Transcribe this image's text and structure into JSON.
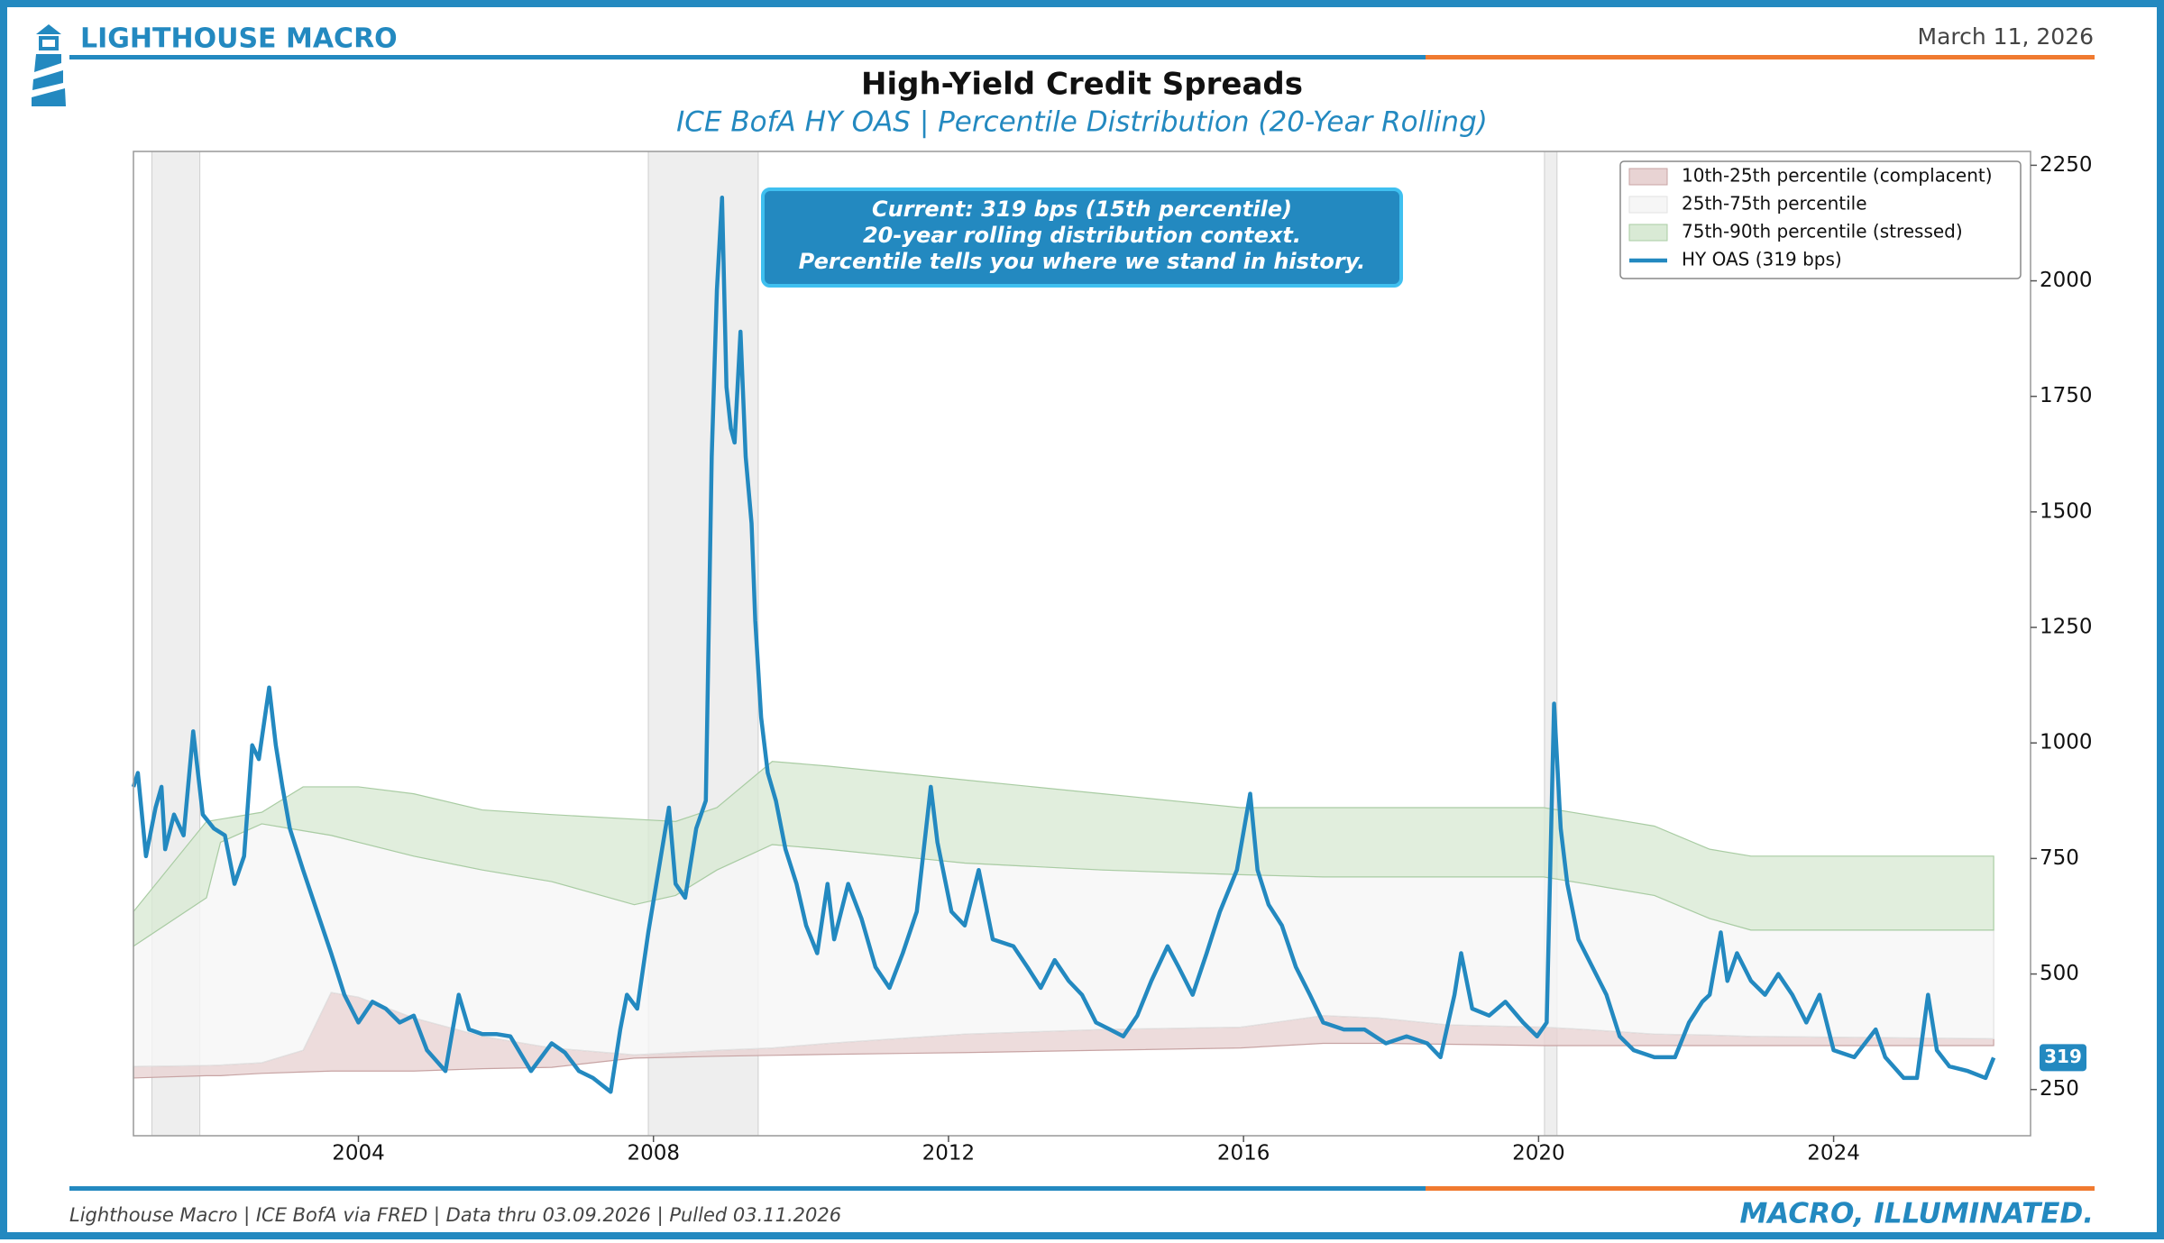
{
  "header": {
    "brand": "LIGHTHOUSE MACRO",
    "date": "March 11, 2026"
  },
  "footer": {
    "source": "Lighthouse Macro | ICE BofA via FRED | Data thru 03.09.2026 | Pulled 03.11.2026",
    "tagline": "MACRO, ILLUMINATED."
  },
  "chart_data": {
    "type": "line",
    "title": "High-Yield Credit Spreads",
    "subtitle": "ICE BofA HY OAS | Percentile Distribution (20-Year Rolling)",
    "annotation": [
      "Current: 319 bps (15th percentile)",
      "20-year rolling distribution context.",
      "Percentile tells you where we stand in history."
    ],
    "xlim": [
      2000.95,
      2026.67
    ],
    "xticks": [
      2004,
      2008,
      2012,
      2016,
      2020,
      2024
    ],
    "ylim": [
      150,
      2280
    ],
    "yticks": [
      250,
      500,
      750,
      1000,
      1250,
      1500,
      1750,
      2000,
      2250
    ],
    "legend": "upper right",
    "shaded_periods": [
      [
        2001.2,
        2001.85
      ],
      [
        2007.93,
        2009.42
      ],
      [
        2020.08,
        2020.25
      ]
    ],
    "band_x": [
      2000.95,
      2001.94,
      2002.13,
      2002.69,
      2003.25,
      2003.63,
      2004.0,
      2004.75,
      2005.68,
      2006.62,
      2007.74,
      2008.3,
      2008.86,
      2009.61,
      2010.36,
      2012.22,
      2014.09,
      2015.96,
      2017.08,
      2017.83,
      2018.77,
      2020.07,
      2020.64,
      2021.57,
      2022.32,
      2022.88,
      2026.17
    ],
    "bands": [
      {
        "name": "10th-25th percentile (complacent)",
        "color": "#e8d3d3",
        "edge": "#c7a3a3",
        "lower": [
          275,
          280,
          280,
          285,
          288,
          290,
          290,
          290,
          295,
          298,
          318,
          320,
          322,
          324,
          326,
          330,
          335,
          340,
          350,
          350,
          348,
          345,
          345,
          345,
          345,
          345,
          345
        ],
        "upper": [
          300,
          302,
          303,
          308,
          335,
          460,
          450,
          405,
          365,
          340,
          325,
          330,
          335,
          340,
          350,
          370,
          380,
          385,
          410,
          405,
          390,
          385,
          380,
          370,
          368,
          365,
          360
        ]
      },
      {
        "name": "25th-75th percentile",
        "color": "#f6f6f6",
        "edge": "#e2e2e2",
        "lower": [
          300,
          302,
          303,
          308,
          335,
          460,
          450,
          405,
          365,
          340,
          325,
          330,
          335,
          340,
          350,
          370,
          380,
          385,
          410,
          405,
          390,
          385,
          380,
          370,
          368,
          365,
          360
        ],
        "upper": [
          560,
          665,
          785,
          825,
          810,
          800,
          785,
          755,
          725,
          700,
          650,
          670,
          725,
          780,
          770,
          740,
          725,
          715,
          710,
          710,
          710,
          710,
          695,
          670,
          620,
          595,
          595
        ]
      },
      {
        "name": "75th-90th percentile (stressed)",
        "color": "#d9ead5",
        "edge": "#a9cca3",
        "lower": [
          560,
          665,
          785,
          825,
          810,
          800,
          785,
          755,
          725,
          700,
          650,
          670,
          725,
          780,
          770,
          740,
          725,
          715,
          710,
          710,
          710,
          710,
          695,
          670,
          620,
          595,
          595
        ],
        "upper": [
          635,
          830,
          835,
          850,
          905,
          905,
          905,
          890,
          855,
          845,
          835,
          830,
          860,
          960,
          950,
          920,
          890,
          860,
          860,
          860,
          860,
          860,
          845,
          820,
          770,
          755,
          755
        ]
      }
    ],
    "x": [
      2000.95,
      2001.01,
      2001.12,
      2001.25,
      2001.33,
      2001.38,
      2001.5,
      2001.63,
      2001.76,
      2001.89,
      2002.04,
      2002.19,
      2002.32,
      2002.45,
      2002.56,
      2002.65,
      2002.79,
      2002.88,
      2002.97,
      2003.07,
      2003.25,
      2003.44,
      2003.63,
      2003.81,
      2004.0,
      2004.19,
      2004.37,
      2004.56,
      2004.75,
      2004.93,
      2005.18,
      2005.36,
      2005.5,
      2005.68,
      2005.87,
      2006.06,
      2006.34,
      2006.62,
      2006.8,
      2006.99,
      2007.18,
      2007.42,
      2007.55,
      2007.64,
      2007.78,
      2007.93,
      2008.07,
      2008.21,
      2008.3,
      2008.43,
      2008.58,
      2008.71,
      2008.79,
      2008.86,
      2008.93,
      2008.99,
      2009.05,
      2009.1,
      2009.18,
      2009.25,
      2009.33,
      2009.38,
      2009.46,
      2009.55,
      2009.66,
      2009.79,
      2009.94,
      2010.07,
      2010.22,
      2010.36,
      2010.45,
      2010.64,
      2010.82,
      2011.01,
      2011.2,
      2011.38,
      2011.57,
      2011.76,
      2011.85,
      2012.04,
      2012.22,
      2012.41,
      2012.6,
      2012.88,
      2013.07,
      2013.25,
      2013.44,
      2013.63,
      2013.81,
      2014.0,
      2014.19,
      2014.37,
      2014.56,
      2014.75,
      2014.97,
      2015.12,
      2015.31,
      2015.5,
      2015.68,
      2015.91,
      2016.09,
      2016.19,
      2016.34,
      2016.52,
      2016.71,
      2016.9,
      2017.08,
      2017.36,
      2017.64,
      2017.93,
      2018.21,
      2018.49,
      2018.67,
      2018.86,
      2018.95,
      2019.1,
      2019.33,
      2019.55,
      2019.79,
      2019.98,
      2020.11,
      2020.21,
      2020.3,
      2020.39,
      2020.54,
      2020.73,
      2020.92,
      2021.1,
      2021.29,
      2021.57,
      2021.85,
      2022.04,
      2022.22,
      2022.32,
      2022.47,
      2022.56,
      2022.69,
      2022.88,
      2023.07,
      2023.25,
      2023.44,
      2023.63,
      2023.81,
      2024.0,
      2024.28,
      2024.57,
      2024.7,
      2024.95,
      2025.13,
      2025.28,
      2025.4,
      2025.57,
      2025.82,
      2026.06,
      2026.17
    ],
    "series": [
      {
        "name": "HY OAS (319 bps)",
        "color": "#2389c0",
        "values": [
          905,
          935,
          755,
          860,
          905,
          770,
          845,
          800,
          1025,
          845,
          815,
          800,
          695,
          755,
          995,
          965,
          1120,
          995,
          905,
          815,
          725,
          635,
          545,
          455,
          395,
          440,
          425,
          395,
          410,
          335,
          290,
          455,
          380,
          370,
          370,
          365,
          290,
          350,
          330,
          290,
          275,
          245,
          380,
          455,
          425,
          590,
          725,
          860,
          695,
          665,
          815,
          875,
          1620,
          1980,
          2180,
          1770,
          1680,
          1650,
          1890,
          1620,
          1475,
          1265,
          1055,
          935,
          875,
          770,
          695,
          605,
          545,
          695,
          575,
          695,
          620,
          515,
          470,
          545,
          635,
          905,
          785,
          635,
          605,
          725,
          575,
          560,
          515,
          470,
          530,
          485,
          455,
          395,
          380,
          365,
          410,
          485,
          560,
          515,
          455,
          545,
          635,
          725,
          890,
          725,
          650,
          605,
          515,
          455,
          395,
          380,
          380,
          350,
          365,
          350,
          320,
          455,
          545,
          425,
          410,
          440,
          395,
          365,
          395,
          1085,
          815,
          695,
          575,
          515,
          455,
          365,
          335,
          320,
          320,
          395,
          440,
          455,
          590,
          485,
          545,
          485,
          455,
          500,
          455,
          395,
          455,
          335,
          320,
          380,
          320,
          275,
          275,
          455,
          335,
          300,
          290,
          275,
          319
        ]
      }
    ]
  }
}
